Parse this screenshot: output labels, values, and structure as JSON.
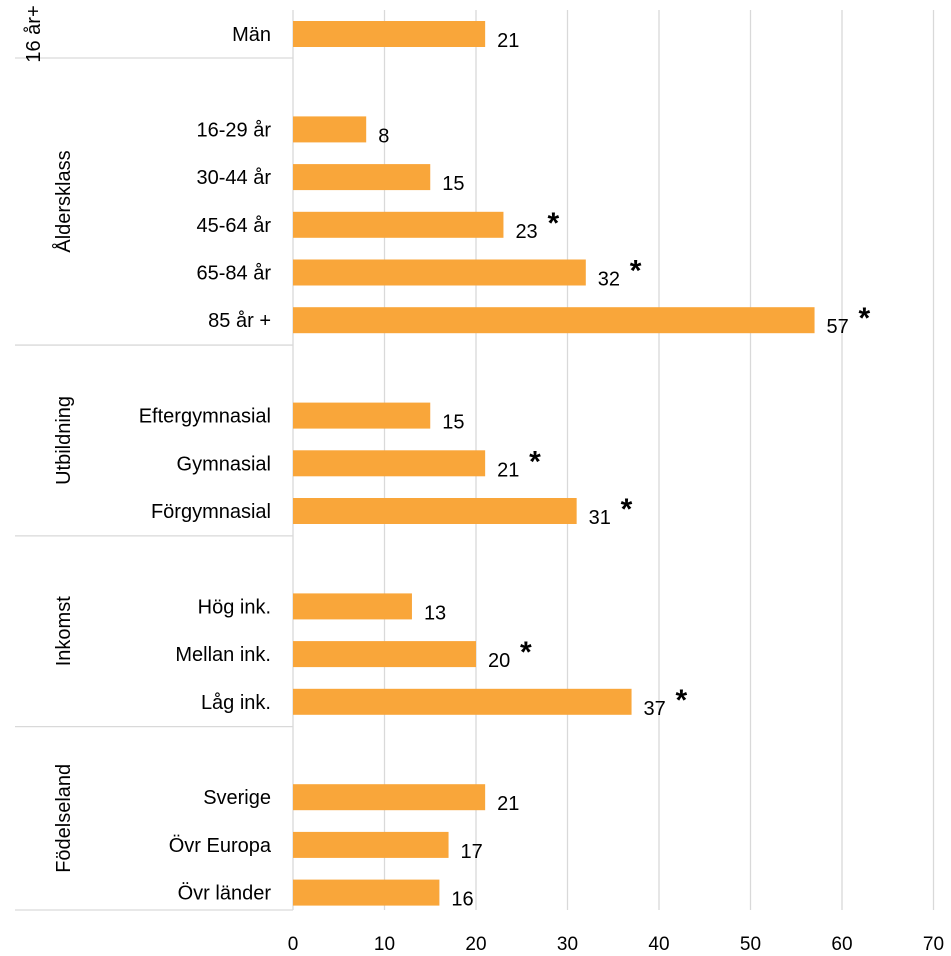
{
  "chart_data": {
    "type": "bar",
    "orientation": "horizontal",
    "xlim": [
      0,
      70
    ],
    "x_ticks": [
      "0",
      "10",
      "20",
      "30",
      "40",
      "50",
      "60",
      "70"
    ],
    "grid": "vertical",
    "bar_color": "#F9A63A",
    "marker": "*",
    "groups": [
      {
        "label": "16 år+",
        "items": [
          {
            "category": "Män",
            "value": 21,
            "label": "21",
            "star": false
          }
        ]
      },
      {
        "label": "Åldersklass",
        "items": [
          {
            "category": "16-29 år",
            "value": 8,
            "label": "8",
            "star": false
          },
          {
            "category": "30-44 år",
            "value": 15,
            "label": "15",
            "star": false
          },
          {
            "category": "45-64 år",
            "value": 23,
            "label": "23",
            "star": true
          },
          {
            "category": "65-84 år",
            "value": 32,
            "label": "32",
            "star": true
          },
          {
            "category": "85 år +",
            "value": 57,
            "label": "57",
            "star": true
          }
        ]
      },
      {
        "label": "Utbildning",
        "items": [
          {
            "category": "Eftergymnasial",
            "value": 15,
            "label": "15",
            "star": false
          },
          {
            "category": "Gymnasial",
            "value": 21,
            "label": "21",
            "star": true
          },
          {
            "category": "Förgymnasial",
            "value": 31,
            "label": "31",
            "star": true
          }
        ]
      },
      {
        "label": "Inkomst",
        "items": [
          {
            "category": "Hög ink.",
            "value": 13,
            "label": "13",
            "star": false
          },
          {
            "category": "Mellan ink.",
            "value": 20,
            "label": "20",
            "star": true
          },
          {
            "category": "Låg ink.",
            "value": 37,
            "label": "37",
            "star": true
          }
        ]
      },
      {
        "label": "Födelseland",
        "items": [
          {
            "category": "Sverige",
            "value": 21,
            "label": "21",
            "star": false
          },
          {
            "category": "Övr Europa",
            "value": 17,
            "label": "17",
            "star": false
          },
          {
            "category": "Övr länder",
            "value": 16,
            "label": "16",
            "star": false
          }
        ]
      }
    ]
  }
}
